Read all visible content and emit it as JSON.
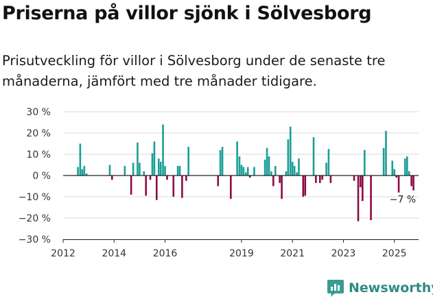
{
  "title": "Priserna på villor sjönk i Sölvesborg",
  "subtitle": "Prisutveckling för villor i Sölvesborg under de senaste tre månaderna, jämfört med tre månader tidigare.",
  "brand": {
    "name": "Newsworthy",
    "icon": "newsworthy-logo-icon"
  },
  "colors": {
    "positive": "#1a9e96",
    "negative": "#8c0a45",
    "grid": "#d9d9d9",
    "axis": "#222222"
  },
  "chart_data": {
    "type": "bar",
    "ylim": [
      -30,
      30
    ],
    "yticks": [
      30,
      20,
      10,
      0,
      -10,
      -20,
      -30
    ],
    "ytick_labels": [
      "30 %",
      "20 %",
      "10 %",
      "0 %",
      "−10 %",
      "−20 %",
      "−30 %"
    ],
    "xlim": [
      2012.0,
      2025.95
    ],
    "xticks": [
      2012,
      2014,
      2016,
      2019,
      2021,
      2023,
      2025
    ],
    "xtick_labels": [
      "2012",
      "2014",
      "2016",
      "2019",
      "2021",
      "2023",
      "2025"
    ],
    "grid": true,
    "annotation": {
      "text": "−7 %",
      "x": 2025.33,
      "y": -7
    },
    "points": [
      [
        2012.58,
        4
      ],
      [
        2012.67,
        15
      ],
      [
        2012.75,
        3
      ],
      [
        2012.83,
        4.5
      ],
      [
        2012.92,
        1
      ],
      [
        2013.83,
        5
      ],
      [
        2013.92,
        -2
      ],
      [
        2014.42,
        4.5
      ],
      [
        2014.67,
        -9
      ],
      [
        2014.75,
        6
      ],
      [
        2014.92,
        15.5
      ],
      [
        2015.0,
        6
      ],
      [
        2015.17,
        2
      ],
      [
        2015.25,
        -9.5
      ],
      [
        2015.42,
        -2
      ],
      [
        2015.5,
        10.5
      ],
      [
        2015.58,
        16
      ],
      [
        2015.67,
        -11.5
      ],
      [
        2015.75,
        8
      ],
      [
        2015.83,
        6.5
      ],
      [
        2015.92,
        24
      ],
      [
        2016.0,
        4.5
      ],
      [
        2016.08,
        -2
      ],
      [
        2016.33,
        -10
      ],
      [
        2016.5,
        4.5
      ],
      [
        2016.58,
        4.5
      ],
      [
        2016.67,
        -10.5
      ],
      [
        2016.83,
        -2.5
      ],
      [
        2016.92,
        13.5
      ],
      [
        2018.08,
        -5
      ],
      [
        2018.17,
        12
      ],
      [
        2018.25,
        13.5
      ],
      [
        2018.58,
        -11
      ],
      [
        2018.83,
        16
      ],
      [
        2018.92,
        9
      ],
      [
        2019.0,
        5
      ],
      [
        2019.08,
        4
      ],
      [
        2019.17,
        1.5
      ],
      [
        2019.25,
        4
      ],
      [
        2019.33,
        -1
      ],
      [
        2019.5,
        4
      ],
      [
        2019.92,
        7.5
      ],
      [
        2020.0,
        13
      ],
      [
        2020.08,
        9
      ],
      [
        2020.17,
        2
      ],
      [
        2020.25,
        -5
      ],
      [
        2020.33,
        4.5
      ],
      [
        2020.5,
        -3.5
      ],
      [
        2020.58,
        -11
      ],
      [
        2020.75,
        2
      ],
      [
        2020.83,
        17
      ],
      [
        2020.92,
        23
      ],
      [
        2021.0,
        6.5
      ],
      [
        2021.08,
        4.5
      ],
      [
        2021.17,
        1.5
      ],
      [
        2021.25,
        8
      ],
      [
        2021.42,
        -10
      ],
      [
        2021.5,
        -9.5
      ],
      [
        2021.83,
        18
      ],
      [
        2021.92,
        -3.5
      ],
      [
        2022.08,
        -3.5
      ],
      [
        2022.17,
        -2
      ],
      [
        2022.33,
        6
      ],
      [
        2022.42,
        12.5
      ],
      [
        2022.5,
        -3.5
      ],
      [
        2023.42,
        -2.5
      ],
      [
        2023.58,
        -21.5
      ],
      [
        2023.67,
        -5.5
      ],
      [
        2023.75,
        -12
      ],
      [
        2023.83,
        12
      ],
      [
        2024.08,
        -21
      ],
      [
        2024.58,
        13
      ],
      [
        2024.67,
        21
      ],
      [
        2024.92,
        7
      ],
      [
        2025.0,
        3
      ],
      [
        2025.08,
        -1
      ],
      [
        2025.17,
        -8
      ],
      [
        2025.42,
        8
      ],
      [
        2025.5,
        9
      ],
      [
        2025.58,
        2
      ],
      [
        2025.67,
        -5
      ],
      [
        2025.75,
        -7
      ]
    ]
  }
}
